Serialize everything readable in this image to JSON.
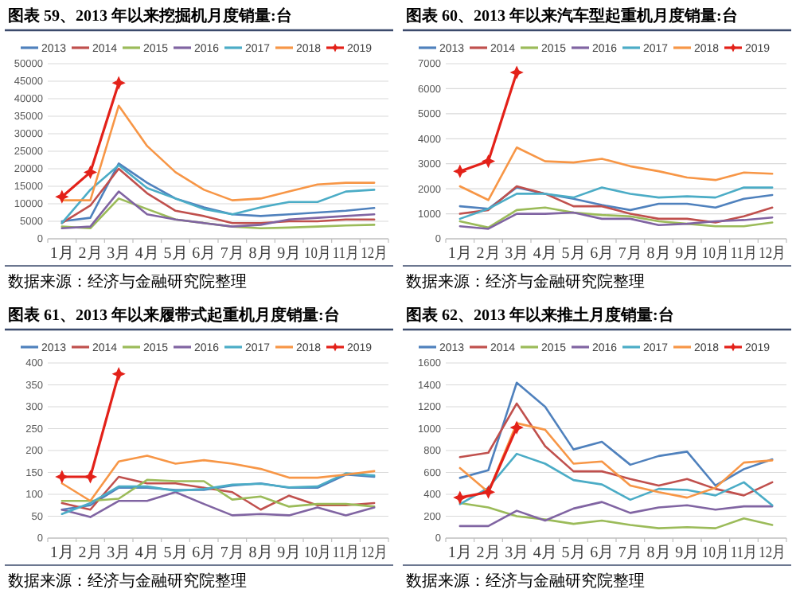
{
  "chart_data": [
    {
      "type": "line",
      "title": "图表 59、2013 年以来挖掘机月度销量:台",
      "categories": [
        "1月",
        "2月",
        "3月",
        "4月",
        "5月",
        "6月",
        "7月",
        "8月",
        "9月",
        "10月",
        "11月",
        "12月"
      ],
      "ylim": [
        0,
        50000
      ],
      "yticks": [
        0,
        5000,
        10000,
        15000,
        20000,
        25000,
        30000,
        35000,
        40000,
        45000,
        50000
      ],
      "grid": "y",
      "legend": "top",
      "annotations": [
        "数据来源：经济与金融研究院整理"
      ],
      "series": [
        {
          "name": "2013",
          "color": "#4f81bd",
          "values": [
            5000,
            6000,
            21500,
            16000,
            11500,
            9000,
            7000,
            6500,
            7000,
            7500,
            8000,
            8800
          ]
        },
        {
          "name": "2014",
          "color": "#c0504d",
          "values": [
            4500,
            9500,
            20000,
            13000,
            8000,
            6500,
            4500,
            4500,
            5000,
            5000,
            5500,
            5500
          ]
        },
        {
          "name": "2015",
          "color": "#9bbb59",
          "values": [
            3500,
            3000,
            11500,
            8500,
            5500,
            4500,
            3500,
            3000,
            3200,
            3500,
            3800,
            4000
          ]
        },
        {
          "name": "2016",
          "color": "#8064a2",
          "values": [
            3000,
            3500,
            13500,
            7000,
            5500,
            4500,
            3500,
            4000,
            5500,
            6000,
            6500,
            7000
          ]
        },
        {
          "name": "2017",
          "color": "#4bacc6",
          "values": [
            4500,
            14000,
            21000,
            14500,
            11500,
            8500,
            7000,
            9000,
            10500,
            10500,
            13500,
            14000
          ]
        },
        {
          "name": "2018",
          "color": "#f79646",
          "values": [
            11000,
            11000,
            38000,
            26500,
            19000,
            14000,
            11000,
            11500,
            13500,
            15500,
            16000,
            16000
          ]
        },
        {
          "name": "2019",
          "color": "#e32119",
          "marker": "star",
          "values": [
            12000,
            19000,
            44500,
            null,
            null,
            null,
            null,
            null,
            null,
            null,
            null,
            null
          ]
        }
      ]
    },
    {
      "type": "line",
      "title": "图表 60、2013 年以来汽车型起重机月度销量:台",
      "categories": [
        "1月",
        "2月",
        "3月",
        "4月",
        "5月",
        "6月",
        "7月",
        "8月",
        "9月",
        "10月",
        "11月",
        "12月"
      ],
      "ylim": [
        0,
        7000
      ],
      "yticks": [
        0,
        1000,
        2000,
        3000,
        4000,
        5000,
        6000,
        7000
      ],
      "grid": "y",
      "legend": "top",
      "annotations": [
        "数据来源：经济与金融研究院整理"
      ],
      "series": [
        {
          "name": "2013",
          "color": "#4f81bd",
          "values": [
            1300,
            1200,
            2050,
            1800,
            1600,
            1350,
            1150,
            1400,
            1400,
            1250,
            1600,
            1750
          ]
        },
        {
          "name": "2014",
          "color": "#c0504d",
          "values": [
            1000,
            1150,
            2100,
            1800,
            1300,
            1300,
            1000,
            800,
            800,
            650,
            900,
            1250
          ]
        },
        {
          "name": "2015",
          "color": "#9bbb59",
          "values": [
            700,
            450,
            1150,
            1250,
            1050,
            950,
            900,
            700,
            600,
            500,
            500,
            650
          ]
        },
        {
          "name": "2016",
          "color": "#8064a2",
          "values": [
            500,
            400,
            1000,
            1000,
            1050,
            800,
            800,
            550,
            600,
            700,
            750,
            850
          ]
        },
        {
          "name": "2017",
          "color": "#4bacc6",
          "values": [
            800,
            1200,
            1800,
            1800,
            1650,
            2050,
            1800,
            1650,
            1700,
            1650,
            2050,
            2050
          ]
        },
        {
          "name": "2018",
          "color": "#f79646",
          "values": [
            2100,
            1550,
            3650,
            3100,
            3050,
            3200,
            2900,
            2700,
            2450,
            2350,
            2650,
            2600
          ]
        },
        {
          "name": "2019",
          "color": "#e32119",
          "marker": "star",
          "values": [
            2700,
            3100,
            6650,
            null,
            null,
            null,
            null,
            null,
            null,
            null,
            null,
            null
          ]
        }
      ]
    },
    {
      "type": "line",
      "title": "图表 61、2013 年以来履带式起重机月度销量:台",
      "categories": [
        "1月",
        "2月",
        "3月",
        "4月",
        "5月",
        "6月",
        "7月",
        "8月",
        "9月",
        "10月",
        "11月",
        "12月"
      ],
      "ylim": [
        0,
        400
      ],
      "yticks": [
        0,
        50,
        100,
        150,
        200,
        250,
        300,
        350,
        400
      ],
      "grid": "y",
      "legend": "top",
      "annotations": [
        "数据来源：经济与金融研究院整理"
      ],
      "series": [
        {
          "name": "2013",
          "color": "#4f81bd",
          "values": [
            65,
            75,
            115,
            115,
            110,
            110,
            120,
            125,
            115,
            115,
            145,
            140
          ]
        },
        {
          "name": "2014",
          "color": "#c0504d",
          "values": [
            80,
            65,
            140,
            125,
            125,
            115,
            105,
            65,
            97,
            75,
            75,
            80
          ]
        },
        {
          "name": "2015",
          "color": "#9bbb59",
          "values": [
            85,
            85,
            90,
            133,
            130,
            130,
            88,
            95,
            72,
            78,
            78,
            72
          ]
        },
        {
          "name": "2016",
          "color": "#8064a2",
          "values": [
            65,
            48,
            85,
            85,
            105,
            78,
            52,
            55,
            52,
            70,
            52,
            70
          ]
        },
        {
          "name": "2017",
          "color": "#4bacc6",
          "values": [
            55,
            80,
            118,
            118,
            108,
            112,
            122,
            124,
            116,
            118,
            148,
            143
          ]
        },
        {
          "name": "2018",
          "color": "#f79646",
          "values": [
            125,
            85,
            175,
            188,
            170,
            178,
            170,
            158,
            138,
            138,
            145,
            153
          ]
        },
        {
          "name": "2019",
          "color": "#e32119",
          "marker": "star",
          "values": [
            140,
            140,
            375,
            null,
            null,
            null,
            null,
            null,
            null,
            null,
            null,
            null
          ]
        }
      ]
    },
    {
      "type": "line",
      "title": "图表 62、2013 年以来推土月度销量:台",
      "categories": [
        "1月",
        "2月",
        "3月",
        "4月",
        "5月",
        "6月",
        "7月",
        "8月",
        "9月",
        "10月",
        "11月",
        "12月"
      ],
      "ylim": [
        0,
        1600
      ],
      "yticks": [
        0,
        200,
        400,
        600,
        800,
        1000,
        1200,
        1400,
        1600
      ],
      "grid": "y",
      "legend": "top",
      "annotations": [
        "数据来源：经济与金融研究院整理"
      ],
      "series": [
        {
          "name": "2013",
          "color": "#4f81bd",
          "values": [
            550,
            620,
            1420,
            1200,
            810,
            880,
            670,
            750,
            790,
            480,
            630,
            720
          ]
        },
        {
          "name": "2014",
          "color": "#c0504d",
          "values": [
            740,
            780,
            1230,
            840,
            610,
            610,
            540,
            480,
            540,
            450,
            390,
            510
          ]
        },
        {
          "name": "2015",
          "color": "#9bbb59",
          "values": [
            320,
            280,
            200,
            170,
            130,
            160,
            120,
            90,
            100,
            90,
            180,
            120
          ]
        },
        {
          "name": "2016",
          "color": "#8064a2",
          "values": [
            110,
            110,
            250,
            160,
            270,
            330,
            230,
            280,
            300,
            260,
            290,
            290
          ]
        },
        {
          "name": "2017",
          "color": "#4bacc6",
          "values": [
            310,
            460,
            770,
            680,
            530,
            490,
            350,
            450,
            440,
            390,
            510,
            300
          ]
        },
        {
          "name": "2018",
          "color": "#f79646",
          "values": [
            640,
            420,
            1050,
            990,
            680,
            700,
            480,
            420,
            370,
            460,
            690,
            710
          ]
        },
        {
          "name": "2019",
          "color": "#e32119",
          "marker": "star",
          "values": [
            370,
            420,
            1010,
            null,
            null,
            null,
            null,
            null,
            null,
            null,
            null,
            null
          ]
        }
      ]
    }
  ]
}
